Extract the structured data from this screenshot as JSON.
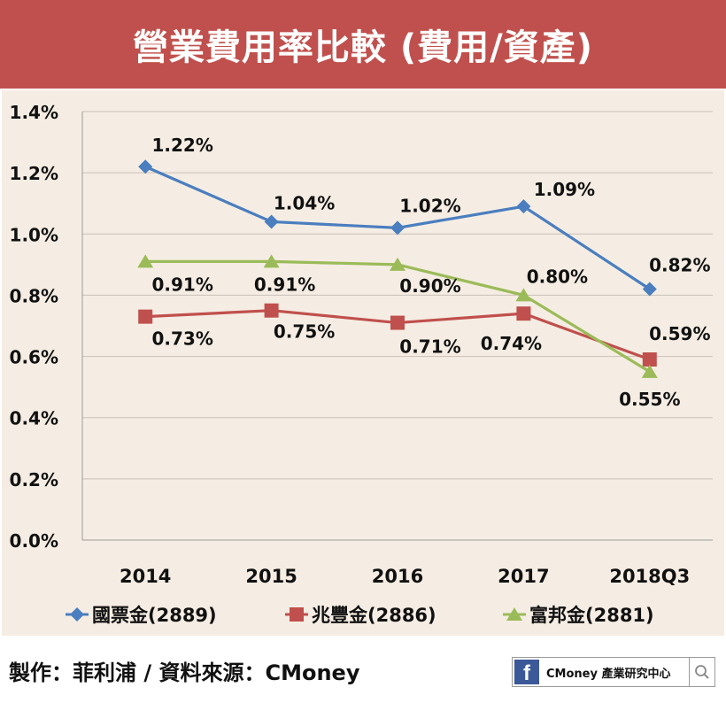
{
  "banner": {
    "title": "營業費用率比較 (費用/資產)"
  },
  "footer": {
    "credit": "製作：菲利浦 / 資料來源：CMoney",
    "badge_icon": "facebook-icon",
    "badge_text": "CMoney 產業研究中心",
    "search_icon": "search-icon"
  },
  "colors": {
    "banner": "#c0504d",
    "plot_bg": "#f5ede3",
    "series_1": "#4a7ebf",
    "series_2": "#c0504d",
    "series_3": "#9bbb59"
  },
  "chart_data": {
    "type": "line",
    "title": "營業費用率比較 (費用/資產)",
    "categories": [
      "2014",
      "2015",
      "2016",
      "2017",
      "2018Q3"
    ],
    "ylim": [
      0,
      1.4
    ],
    "yticks": [
      "0.0%",
      "0.2%",
      "0.4%",
      "0.6%",
      "0.8%",
      "1.0%",
      "1.2%",
      "1.4%"
    ],
    "grid": true,
    "legend_position": "bottom",
    "series": [
      {
        "name": "國票金(2889)",
        "marker": "diamond",
        "color": "#4a7ebf",
        "values": [
          1.22,
          1.04,
          1.02,
          1.09,
          0.82
        ],
        "labels": [
          "1.22%",
          "1.04%",
          "1.02%",
          "1.09%",
          "0.82%"
        ]
      },
      {
        "name": "兆豐金(2886)",
        "marker": "square",
        "color": "#c0504d",
        "values": [
          0.73,
          0.75,
          0.71,
          0.74,
          0.59
        ],
        "labels": [
          "0.73%",
          "0.75%",
          "0.71%",
          "0.74%",
          "0.59%"
        ]
      },
      {
        "name": "富邦金(2881)",
        "marker": "triangle",
        "color": "#9bbb59",
        "values": [
          0.91,
          0.91,
          0.9,
          0.8,
          0.55
        ],
        "labels": [
          "0.91%",
          "0.91%",
          "0.90%",
          "0.80%",
          "0.55%"
        ]
      }
    ]
  }
}
